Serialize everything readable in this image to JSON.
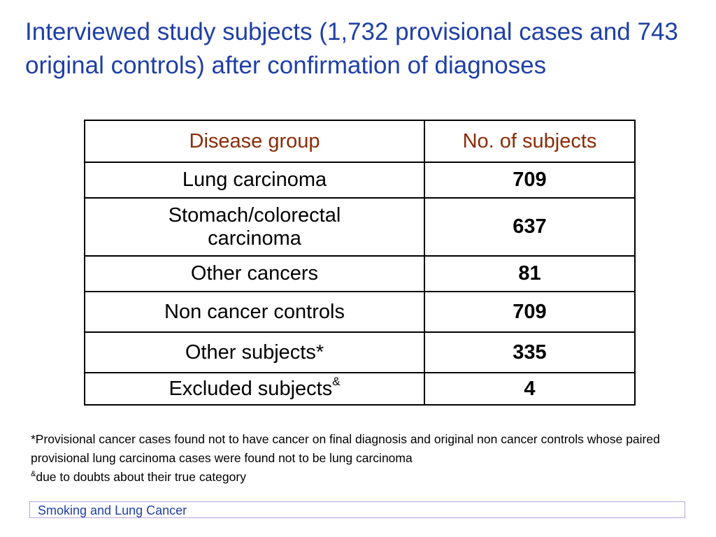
{
  "title": "Interviewed study subjects (1,732 provisional cases and 743 original controls) after confirmation of diagnoses",
  "table": {
    "headers": [
      "Disease group",
      "No. of subjects"
    ],
    "rows": [
      {
        "group": "Lung carcinoma",
        "count": "709"
      },
      {
        "group": "Stomach/colorectal carcinoma",
        "count": "637"
      },
      {
        "group": "Other cancers",
        "count": "81"
      },
      {
        "group": "Non cancer controls",
        "count": "709"
      },
      {
        "group": "Other subjects*",
        "count": "335"
      },
      {
        "group": "Excluded subjects",
        "group_sup": "&",
        "count": "4"
      }
    ]
  },
  "footnotes": {
    "line1": "*Provisional cancer cases found not to have cancer on final diagnosis and original non cancer controls whose paired provisional lung carcinoma cases were found not to be lung carcinoma",
    "line2_sup": "&",
    "line2": "due to doubts about their true category"
  },
  "footer": "Smoking and Lung Cancer",
  "colors": {
    "title": "#1f3fa6",
    "header_text": "#8b2b07",
    "footer_border": "#b8a6e0"
  }
}
